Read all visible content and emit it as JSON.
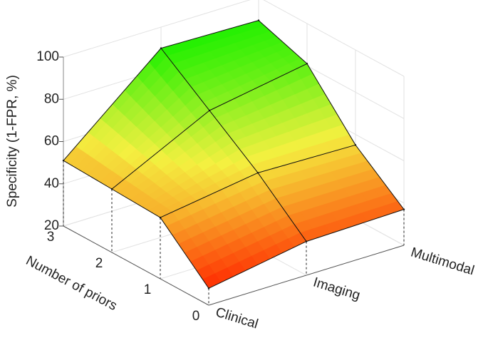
{
  "chart_data": {
    "type": "surface",
    "categories": [
      "Clinical",
      "Imaging",
      "Multimodal"
    ],
    "y": [
      0,
      1,
      2,
      3
    ],
    "values": [
      [
        28,
        36,
        37
      ],
      [
        49,
        56,
        55
      ],
      [
        50,
        73,
        81
      ],
      [
        51,
        90,
        89
      ]
    ],
    "ylim": [
      0,
      3
    ],
    "yticks": [
      0,
      1,
      2,
      3
    ],
    "zlim": [
      20,
      100
    ],
    "zticks": [
      20,
      40,
      60,
      80,
      100
    ],
    "ylabel": "Number of priors",
    "zlabel": "Specificity (1-FPR, %)",
    "colormap": [
      "#ff2a00",
      "#f4f040",
      "#1ef000"
    ],
    "grid": true
  }
}
